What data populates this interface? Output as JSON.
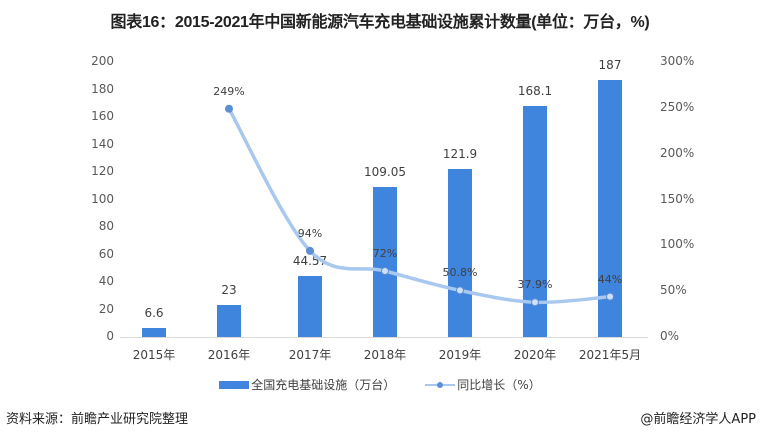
{
  "title": "图表16：2015-2021年中国新能源汽车充电基础设施累计数量(单位：万台，%)",
  "chart_data": {
    "type": "bar+line",
    "title": "图表16：2015-2021年中国新能源汽车充电基础设施累计数量(单位：万台，%)",
    "categories": [
      "2015年",
      "2016年",
      "2017年",
      "2018年",
      "2019年",
      "2020年",
      "2021年5月"
    ],
    "series": [
      {
        "name": "全国充电基础设施（万台）",
        "type": "bar",
        "axis": "left",
        "color": "#3f84dd",
        "values": [
          6.6,
          23,
          44.57,
          109.05,
          121.9,
          168.1,
          187
        ],
        "labels": [
          "6.6",
          "23",
          "44.57",
          "109.05",
          "121.9",
          "168.1",
          "187"
        ]
      },
      {
        "name": "同比增长（%）",
        "type": "line",
        "axis": "right",
        "color": "#a8c8ef",
        "values": [
          null,
          249,
          94,
          72,
          50.8,
          37.9,
          44
        ],
        "labels": [
          "",
          "249%",
          "94%",
          "72%",
          "50.8%",
          "37.9%",
          "44%"
        ]
      }
    ],
    "left_axis": {
      "ylim": [
        0,
        200
      ],
      "ticks": [
        "0",
        "20",
        "40",
        "60",
        "80",
        "100",
        "120",
        "140",
        "160",
        "180",
        "200"
      ]
    },
    "right_axis": {
      "ylim": [
        0,
        300
      ],
      "ticks": [
        "0%",
        "50%",
        "100%",
        "150%",
        "200%",
        "250%",
        "300%"
      ]
    },
    "xlabel": "",
    "ylabel": "",
    "grid": false,
    "legend_position": "bottom"
  },
  "legend": {
    "bar_label": "全国充电基础设施（万台）",
    "line_label": "同比增长（%）"
  },
  "footer": {
    "source": "资料来源：前瞻产业研究院整理",
    "credit": "@前瞻经济学人APP"
  }
}
